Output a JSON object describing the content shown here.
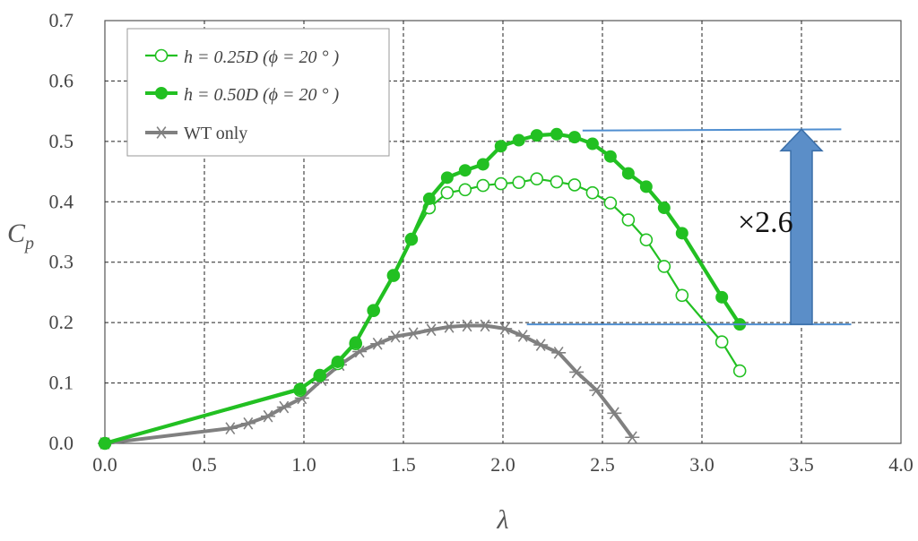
{
  "chart_data": {
    "type": "line",
    "xlabel": "λ",
    "ylabel_main": "C",
    "ylabel_sub": "p",
    "xlim": [
      0.0,
      4.0
    ],
    "ylim": [
      0.0,
      0.7
    ],
    "x_ticks": [
      "0.0",
      "0.5",
      "1.0",
      "1.5",
      "2.0",
      "2.5",
      "3.0",
      "3.5",
      "4.0"
    ],
    "y_ticks": [
      "0.0",
      "0.1",
      "0.2",
      "0.3",
      "0.4",
      "0.5",
      "0.6",
      "0.7"
    ],
    "grid": true,
    "legend_position": "top-left",
    "series": [
      {
        "name": "h = 0.25D (ϕ = 20 ° )",
        "color": "#22c022",
        "marker": "open-circle",
        "points": [
          [
            0.0,
            0.0
          ],
          [
            0.98,
            0.088
          ],
          [
            1.08,
            0.112
          ],
          [
            1.17,
            0.132
          ],
          [
            1.26,
            0.165
          ],
          [
            1.35,
            0.22
          ],
          [
            1.45,
            0.278
          ],
          [
            1.54,
            0.338
          ],
          [
            1.63,
            0.39
          ],
          [
            1.72,
            0.415
          ],
          [
            1.81,
            0.42
          ],
          [
            1.9,
            0.427
          ],
          [
            1.99,
            0.43
          ],
          [
            2.08,
            0.432
          ],
          [
            2.17,
            0.438
          ],
          [
            2.27,
            0.433
          ],
          [
            2.36,
            0.428
          ],
          [
            2.45,
            0.415
          ],
          [
            2.54,
            0.398
          ],
          [
            2.63,
            0.37
          ],
          [
            2.72,
            0.337
          ],
          [
            2.81,
            0.293
          ],
          [
            2.9,
            0.245
          ],
          [
            3.1,
            0.168
          ],
          [
            3.19,
            0.12
          ]
        ]
      },
      {
        "name": "h = 0.50D (ϕ = 20 ° )",
        "color": "#22c022",
        "marker": "filled-circle",
        "points": [
          [
            0.0,
            0.0
          ],
          [
            0.98,
            0.09
          ],
          [
            1.08,
            0.113
          ],
          [
            1.17,
            0.135
          ],
          [
            1.26,
            0.167
          ],
          [
            1.35,
            0.22
          ],
          [
            1.45,
            0.278
          ],
          [
            1.54,
            0.338
          ],
          [
            1.63,
            0.405
          ],
          [
            1.72,
            0.44
          ],
          [
            1.81,
            0.452
          ],
          [
            1.9,
            0.462
          ],
          [
            1.99,
            0.492
          ],
          [
            2.08,
            0.502
          ],
          [
            2.17,
            0.51
          ],
          [
            2.27,
            0.512
          ],
          [
            2.36,
            0.507
          ],
          [
            2.45,
            0.496
          ],
          [
            2.54,
            0.475
          ],
          [
            2.63,
            0.447
          ],
          [
            2.72,
            0.425
          ],
          [
            2.81,
            0.39
          ],
          [
            2.9,
            0.348
          ],
          [
            3.1,
            0.242
          ],
          [
            3.19,
            0.197
          ]
        ]
      },
      {
        "name": "WT only",
        "color": "#808080",
        "marker": "asterisk",
        "points": [
          [
            0.0,
            0.0
          ],
          [
            0.63,
            0.025
          ],
          [
            0.72,
            0.033
          ],
          [
            0.82,
            0.045
          ],
          [
            0.9,
            0.06
          ],
          [
            0.99,
            0.075
          ],
          [
            1.09,
            0.105
          ],
          [
            1.18,
            0.13
          ],
          [
            1.28,
            0.152
          ],
          [
            1.37,
            0.165
          ],
          [
            1.46,
            0.177
          ],
          [
            1.55,
            0.182
          ],
          [
            1.64,
            0.188
          ],
          [
            1.73,
            0.193
          ],
          [
            1.82,
            0.195
          ],
          [
            1.91,
            0.195
          ],
          [
            2.01,
            0.19
          ],
          [
            2.1,
            0.178
          ],
          [
            2.19,
            0.163
          ],
          [
            2.28,
            0.15
          ],
          [
            2.37,
            0.118
          ],
          [
            2.47,
            0.088
          ],
          [
            2.56,
            0.05
          ],
          [
            2.65,
            0.01
          ]
        ]
      }
    ],
    "annotations": [
      {
        "type": "reference-line",
        "color": "#4f8ed0",
        "from": [
          2.4,
          0.518
        ],
        "to": [
          3.7,
          0.52
        ]
      },
      {
        "type": "reference-line",
        "color": "#4f8ed0",
        "from": [
          2.12,
          0.197
        ],
        "to": [
          3.75,
          0.197
        ]
      },
      {
        "type": "arrow",
        "color": "#5b8ec8",
        "x": 3.5,
        "from_y": 0.197,
        "to_y": 0.52
      },
      {
        "type": "text",
        "text": "×2.6",
        "x": 3.18,
        "y": 0.35
      }
    ]
  }
}
